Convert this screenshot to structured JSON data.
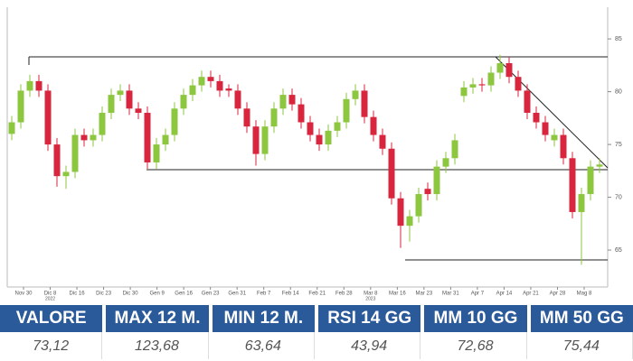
{
  "chart_data": {
    "type": "candlestick",
    "ylim": [
      61.5,
      88
    ],
    "yticks": [
      65,
      70,
      75,
      80,
      85
    ],
    "up_color": "#8dc63f",
    "down_color": "#d7263d",
    "x_labels": [
      "Nov 30",
      "Dic 8",
      "Dic 16",
      "Dic 23",
      "Dic 30",
      "Gen 9",
      "Gen 16",
      "Gen 23",
      "Gen 31",
      "Feb 7",
      "Feb 14",
      "Feb 21",
      "Feb 28",
      "Mar 8",
      "Mar 16",
      "Mar 23",
      "Mar 31",
      "Apr 7",
      "Apr 14",
      "Apr 21",
      "Apr 28",
      "Mag 8"
    ],
    "year_labels": [
      "2022",
      "2023"
    ],
    "candles": [
      [
        76.0,
        77.7,
        75.4,
        77.1
      ],
      [
        77.1,
        80.7,
        76.5,
        80.1
      ],
      [
        80.1,
        81.6,
        79.5,
        81.0
      ],
      [
        81.0,
        81.6,
        79.5,
        80.1
      ],
      [
        80.1,
        80.7,
        74.4,
        75.0
      ],
      [
        75.0,
        75.6,
        71.0,
        72.0
      ],
      [
        72.0,
        73.0,
        70.8,
        72.4
      ],
      [
        72.4,
        76.5,
        71.8,
        75.9
      ],
      [
        75.9,
        76.5,
        74.8,
        75.4
      ],
      [
        75.4,
        76.5,
        74.8,
        75.9
      ],
      [
        75.9,
        78.6,
        75.3,
        78.0
      ],
      [
        78.0,
        80.3,
        77.4,
        79.7
      ],
      [
        79.7,
        80.7,
        79.1,
        80.1
      ],
      [
        80.1,
        80.7,
        77.8,
        78.4
      ],
      [
        78.4,
        79.0,
        77.4,
        78.0
      ],
      [
        78.0,
        78.6,
        72.7,
        73.3
      ],
      [
        73.3,
        75.6,
        72.7,
        75.0
      ],
      [
        75.0,
        76.5,
        74.4,
        75.9
      ],
      [
        75.9,
        79.0,
        75.3,
        78.4
      ],
      [
        78.4,
        80.3,
        77.8,
        79.7
      ],
      [
        79.7,
        81.2,
        79.1,
        80.6
      ],
      [
        80.6,
        82.0,
        80.0,
        81.4
      ],
      [
        81.4,
        82.0,
        80.4,
        81.0
      ],
      [
        81.0,
        81.6,
        79.5,
        80.1
      ],
      [
        80.3,
        80.7,
        79.5,
        80.1
      ],
      [
        80.1,
        80.7,
        77.8,
        78.4
      ],
      [
        78.4,
        79.0,
        76.1,
        76.7
      ],
      [
        76.7,
        77.3,
        73.0,
        74.1
      ],
      [
        74.1,
        77.3,
        73.5,
        76.7
      ],
      [
        76.7,
        79.0,
        76.1,
        78.4
      ],
      [
        78.4,
        80.3,
        77.8,
        79.7
      ],
      [
        79.7,
        80.3,
        78.2,
        78.8
      ],
      [
        78.8,
        79.4,
        76.5,
        77.1
      ],
      [
        77.1,
        77.7,
        75.3,
        75.9
      ],
      [
        75.9,
        76.5,
        74.4,
        75.0
      ],
      [
        75.0,
        76.9,
        74.4,
        76.3
      ],
      [
        76.3,
        77.7,
        75.7,
        77.1
      ],
      [
        77.1,
        79.9,
        76.5,
        79.3
      ],
      [
        79.3,
        80.7,
        78.7,
        80.1
      ],
      [
        80.1,
        80.7,
        77.0,
        77.6
      ],
      [
        77.6,
        78.2,
        75.3,
        75.9
      ],
      [
        75.9,
        76.5,
        74.0,
        74.6
      ],
      [
        74.6,
        75.2,
        69.3,
        69.9
      ],
      [
        69.9,
        70.5,
        65.2,
        67.3
      ],
      [
        67.3,
        68.8,
        65.8,
        68.2
      ],
      [
        68.2,
        70.9,
        67.6,
        70.3
      ],
      [
        70.8,
        71.4,
        69.7,
        70.3
      ],
      [
        70.3,
        73.5,
        69.7,
        72.9
      ],
      [
        72.9,
        74.3,
        72.3,
        73.7
      ],
      [
        73.7,
        76.0,
        73.1,
        75.4
      ],
      [
        79.6,
        81.0,
        79.0,
        80.4
      ],
      [
        80.4,
        81.3,
        79.8,
        80.7
      ],
      [
        80.7,
        81.3,
        80.0,
        80.6
      ],
      [
        80.6,
        82.4,
        80.0,
        81.8
      ],
      [
        81.8,
        83.5,
        81.2,
        82.7
      ],
      [
        82.7,
        83.3,
        80.8,
        81.4
      ],
      [
        81.4,
        82.0,
        79.5,
        80.1
      ],
      [
        80.1,
        80.7,
        77.4,
        78.0
      ],
      [
        78.0,
        78.6,
        76.5,
        77.1
      ],
      [
        77.1,
        77.7,
        75.3,
        75.9
      ],
      [
        75.4,
        76.5,
        74.8,
        75.9
      ],
      [
        75.9,
        76.5,
        73.1,
        73.7
      ],
      [
        73.7,
        74.3,
        68.0,
        68.6
      ],
      [
        68.6,
        70.9,
        63.6,
        70.3
      ],
      [
        70.3,
        73.5,
        69.7,
        72.9
      ],
      [
        72.9,
        73.7,
        72.3,
        73.1
      ]
    ]
  },
  "table": {
    "headers": [
      "VALORE",
      "MAX 12 M.",
      "MIN 12 M.",
      "RSI 14 GG",
      "MM 10 GG",
      "MM 50 GG"
    ],
    "values": [
      "73,12",
      "123,68",
      "63,64",
      "43,94",
      "72,68",
      "75,44"
    ]
  }
}
